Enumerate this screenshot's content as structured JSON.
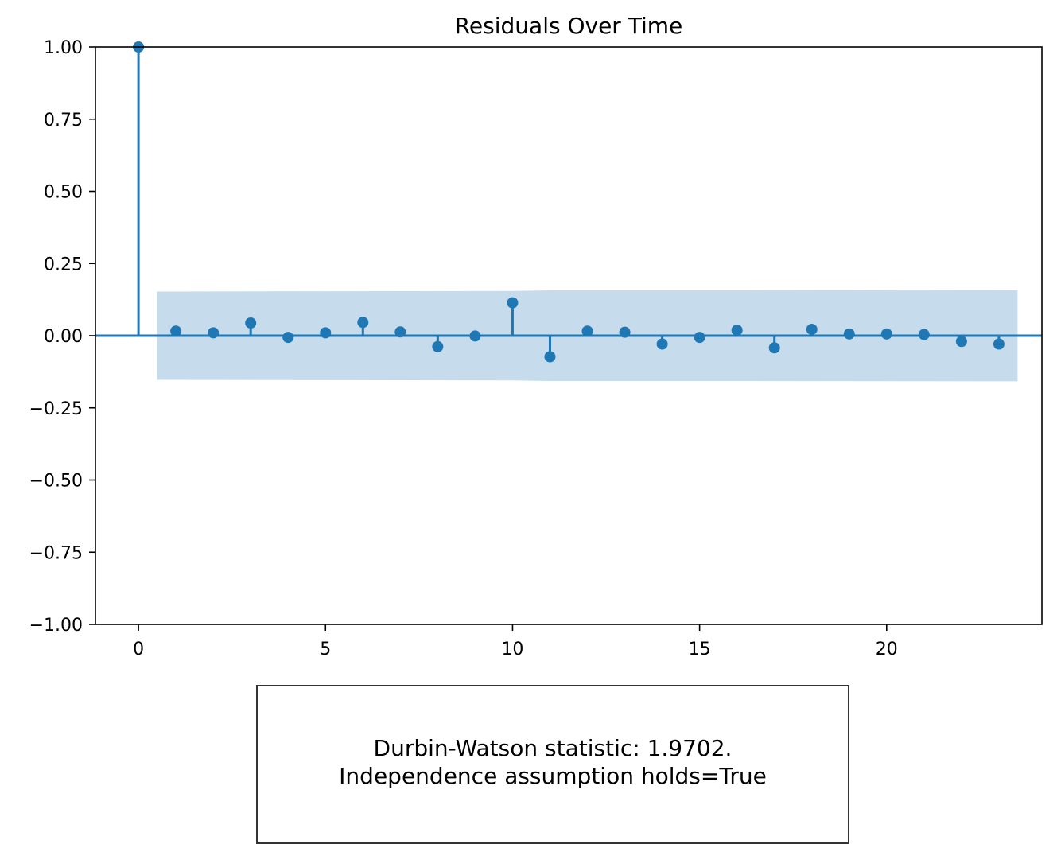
{
  "chart_data": {
    "type": "stem",
    "title": "Residuals Over Time",
    "xlabel": "",
    "ylabel": "",
    "xlim": [
      -1.15,
      24.15
    ],
    "ylim": [
      -1.0,
      1.0
    ],
    "xticks": [
      0,
      5,
      10,
      15,
      20
    ],
    "xtick_labels": [
      "0",
      "5",
      "10",
      "15",
      "20"
    ],
    "yticks": [
      1.0,
      0.75,
      0.5,
      0.25,
      0.0,
      -0.25,
      -0.5,
      -0.75,
      -1.0
    ],
    "ytick_labels": [
      "1.00",
      "0.75",
      "0.50",
      "0.25",
      "0.00",
      "−0.25",
      "−0.50",
      "−0.75",
      "−1.00"
    ],
    "lags": [
      0,
      1,
      2,
      3,
      4,
      5,
      6,
      7,
      8,
      9,
      10,
      11,
      12,
      13,
      14,
      15,
      16,
      17,
      18,
      19,
      20,
      21,
      22,
      23
    ],
    "values": [
      1.0,
      0.016,
      0.01,
      0.044,
      -0.006,
      0.01,
      0.046,
      0.013,
      -0.038,
      -0.001,
      0.114,
      -0.073,
      0.016,
      0.012,
      -0.029,
      -0.006,
      0.019,
      -0.042,
      0.022,
      0.006,
      0.006,
      0.004,
      -0.02,
      -0.029
    ],
    "confidence_band": {
      "x": [
        0.5,
        10,
        11,
        16,
        23.5
      ],
      "upper": [
        0.153,
        0.155,
        0.157,
        0.157,
        0.158
      ],
      "lower": [
        -0.153,
        -0.155,
        -0.157,
        -0.157,
        -0.158
      ]
    },
    "grid": false,
    "colors": {
      "stem": "#1f77b4",
      "band": "#c6dcec"
    }
  },
  "annotation": {
    "line1": "Durbin-Watson statistic: 1.9702.",
    "line2": "Independence assumption holds=True"
  }
}
